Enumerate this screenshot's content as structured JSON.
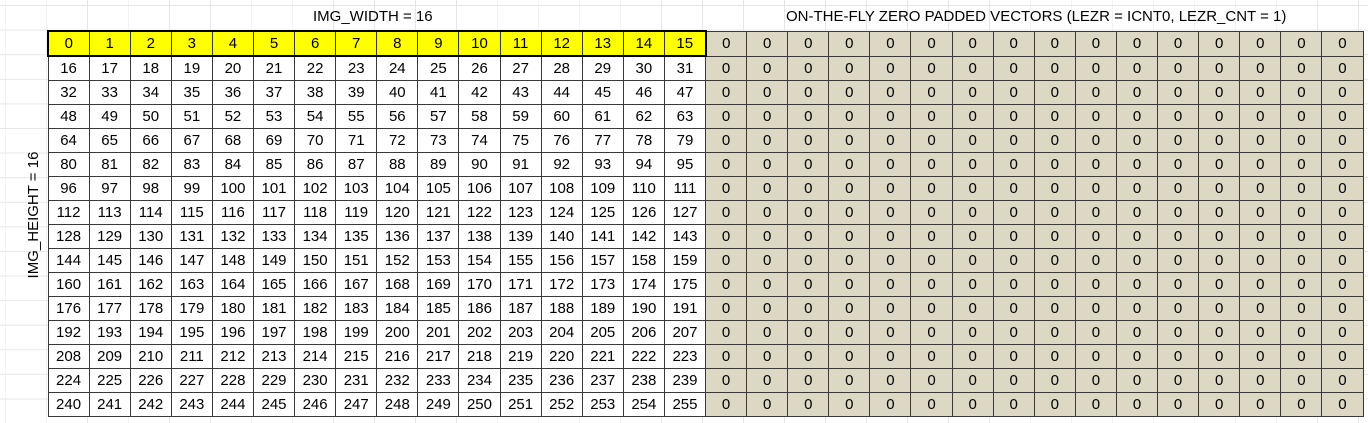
{
  "titles": {
    "img_width": "IMG_WIDTH = 16",
    "zero_padded": "ON-THE-FLY ZERO PADDED VECTORS (LEZR = ICNT0, LEZR_CNT = 1)",
    "img_height": "IMG_HEIGHT = 16"
  },
  "grid": {
    "rows": 16,
    "index_columns": 16,
    "padded_columns": 16,
    "padded_value": "0"
  },
  "colors": {
    "header_fill": "#ffff00",
    "padded_fill": "#ddd8c4",
    "border": "#3a3a3a"
  }
}
